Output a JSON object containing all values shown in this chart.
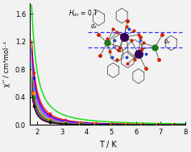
{
  "title": "",
  "xlabel": "T / K",
  "ylabel": "χ'' / cm³mol⁻¹",
  "annotation": "H_{dc} = 0 T",
  "xlim": [
    1.7,
    8.0
  ],
  "ylim": [
    0.0,
    1.75
  ],
  "xticks": [
    2,
    3,
    4,
    5,
    6,
    7,
    8
  ],
  "yticks": [
    0.0,
    0.4,
    0.8,
    1.2,
    1.6
  ],
  "background": "#f0f0f0",
  "curves": [
    {
      "color": "#00dd00",
      "amp": 1.72,
      "decay": 1.55,
      "marker": "none",
      "lw": 1.1
    },
    {
      "color": "#ff0000",
      "amp": 1.22,
      "decay": 1.72,
      "marker": "o",
      "lw": 0.7
    },
    {
      "color": "#ff0000",
      "amp": 1.18,
      "decay": 1.78,
      "marker": "none",
      "lw": 0.7
    },
    {
      "color": "#0000ff",
      "amp": 1.1,
      "decay": 1.8,
      "marker": "o",
      "lw": 0.7
    },
    {
      "color": "#0000ff",
      "amp": 1.06,
      "decay": 1.85,
      "marker": "none",
      "lw": 0.7
    },
    {
      "color": "#ff00ff",
      "amp": 1.0,
      "decay": 1.88,
      "marker": "v",
      "lw": 0.7
    },
    {
      "color": "#ff00ff",
      "amp": 0.96,
      "decay": 1.92,
      "marker": "none",
      "lw": 0.7
    },
    {
      "color": "#00aaff",
      "amp": 0.9,
      "decay": 1.95,
      "marker": "^",
      "lw": 0.7
    },
    {
      "color": "#00aaff",
      "amp": 0.86,
      "decay": 2.0,
      "marker": "none",
      "lw": 0.7
    },
    {
      "color": "#ff8800",
      "amp": 0.8,
      "decay": 2.02,
      "marker": "s",
      "lw": 0.7
    },
    {
      "color": "#ff8800",
      "amp": 0.76,
      "decay": 2.06,
      "marker": "none",
      "lw": 0.7
    },
    {
      "color": "#008800",
      "amp": 0.7,
      "decay": 2.08,
      "marker": "D",
      "lw": 0.7
    },
    {
      "color": "#008800",
      "amp": 0.66,
      "decay": 2.12,
      "marker": "none",
      "lw": 0.7
    },
    {
      "color": "#aa00aa",
      "amp": 0.6,
      "decay": 2.15,
      "marker": "p",
      "lw": 0.7
    },
    {
      "color": "#aa00aa",
      "amp": 0.56,
      "decay": 2.18,
      "marker": "none",
      "lw": 0.7
    },
    {
      "color": "#000000",
      "amp": 0.5,
      "decay": 2.22,
      "marker": "o",
      "lw": 0.7
    },
    {
      "color": "#000000",
      "amp": 0.46,
      "decay": 2.25,
      "marker": "none",
      "lw": 0.7
    }
  ],
  "t_start": 1.78,
  "t_end": 8.0,
  "n_points": 120
}
